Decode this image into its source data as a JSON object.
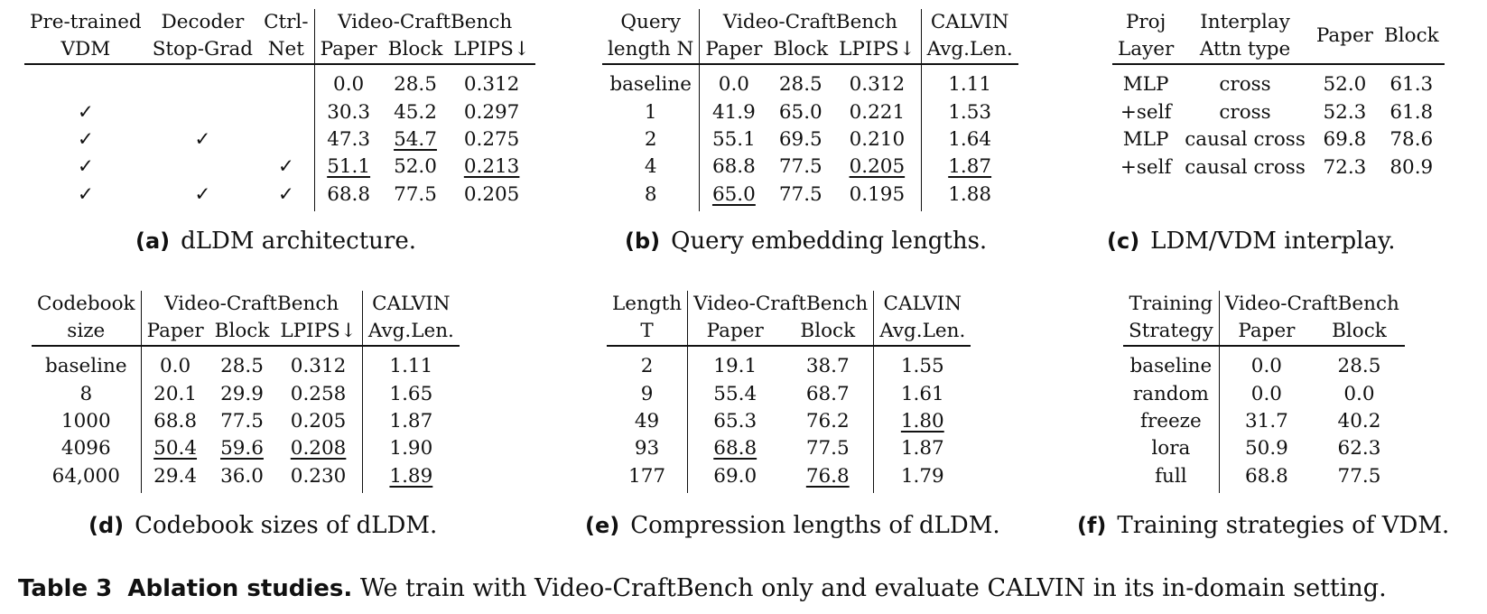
{
  "tables": [
    {
      "id": "a",
      "label": "(a)",
      "caption": "dLDM architecture.",
      "headers": {
        "top": [
          "Pre-trained",
          "Decoder",
          "Ctrl-",
          "Video-CraftBench"
        ],
        "sub": [
          "VDM",
          "Stop-Grad",
          "Net",
          "Paper",
          "Block",
          "LPIPS↓"
        ]
      },
      "rows": [
        [
          "",
          "",
          "",
          "0.0",
          "28.5",
          "0.312"
        ],
        [
          "✓",
          "",
          "",
          "30.3",
          "45.2",
          "0.297"
        ],
        [
          "✓",
          "✓",
          "",
          "47.3",
          "54.7",
          "0.275"
        ],
        [
          "✓",
          "",
          "✓",
          "51.1",
          "52.0",
          "0.213"
        ],
        [
          "✓",
          "✓",
          "✓",
          "68.8",
          "77.5",
          "0.205"
        ]
      ]
    },
    {
      "id": "b",
      "label": "(b)",
      "caption": "Query embedding lengths.",
      "headers": {
        "top": [
          "Query",
          "Video-CraftBench",
          "CALVIN"
        ],
        "sub": [
          "length N",
          "Paper",
          "Block",
          "LPIPS↓",
          "Avg.Len."
        ]
      },
      "rows": [
        [
          "baseline",
          "0.0",
          "28.5",
          "0.312",
          "1.11"
        ],
        [
          "1",
          "41.9",
          "65.0",
          "0.221",
          "1.53"
        ],
        [
          "2",
          "55.1",
          "69.5",
          "0.210",
          "1.64"
        ],
        [
          "4",
          "68.8",
          "77.5",
          "0.205",
          "1.87"
        ],
        [
          "8",
          "65.0",
          "77.5",
          "0.195",
          "1.88"
        ]
      ]
    },
    {
      "id": "c",
      "label": "(c)",
      "caption": "LDM/VDM interplay.",
      "headers": {
        "top": [
          "Proj",
          "Interplay",
          "Paper",
          "Block"
        ],
        "sub": [
          "Layer",
          "Attn type"
        ]
      },
      "rows": [
        [
          "MLP",
          "cross",
          "52.0",
          "61.3"
        ],
        [
          "+self",
          "cross",
          "52.3",
          "61.8"
        ],
        [
          "MLP",
          "causal cross",
          "69.8",
          "78.6"
        ],
        [
          "+self",
          "causal cross",
          "72.3",
          "80.9"
        ]
      ]
    },
    {
      "id": "d",
      "label": "(d)",
      "caption": "Codebook sizes of dLDM.",
      "headers": {
        "top": [
          "Codebook",
          "Video-CraftBench",
          "CALVIN"
        ],
        "sub": [
          "size",
          "Paper",
          "Block",
          "LPIPS↓",
          "Avg.Len."
        ]
      },
      "rows": [
        [
          "baseline",
          "0.0",
          "28.5",
          "0.312",
          "1.11"
        ],
        [
          "8",
          "20.1",
          "29.9",
          "0.258",
          "1.65"
        ],
        [
          "1000",
          "68.8",
          "77.5",
          "0.205",
          "1.87"
        ],
        [
          "4096",
          "50.4",
          "59.6",
          "0.208",
          "1.90"
        ],
        [
          "64,000",
          "29.4",
          "36.0",
          "0.230",
          "1.89"
        ]
      ]
    },
    {
      "id": "e",
      "label": "(e)",
      "caption": "Compression lengths of dLDM.",
      "headers": {
        "top": [
          "Length",
          "Video-CraftBench",
          "CALVIN"
        ],
        "sub": [
          "T",
          "Paper",
          "Block",
          "Avg.Len."
        ]
      },
      "rows": [
        [
          "2",
          "19.1",
          "38.7",
          "1.55"
        ],
        [
          "9",
          "55.4",
          "68.7",
          "1.61"
        ],
        [
          "49",
          "65.3",
          "76.2",
          "1.80"
        ],
        [
          "93",
          "68.8",
          "77.5",
          "1.87"
        ],
        [
          "177",
          "69.0",
          "76.8",
          "1.79"
        ]
      ]
    },
    {
      "id": "f",
      "label": "(f)",
      "caption": "Training strategies of VDM.",
      "headers": {
        "top": [
          "Training",
          "Video-CraftBench"
        ],
        "sub": [
          "Strategy",
          "Paper",
          "Block"
        ]
      },
      "rows": [
        [
          "baseline",
          "0.0",
          "28.5"
        ],
        [
          "random",
          "0.0",
          "0.0"
        ],
        [
          "freeze",
          "31.7",
          "40.2"
        ],
        [
          "lora",
          "50.9",
          "62.3"
        ],
        [
          "full",
          "68.8",
          "77.5"
        ]
      ]
    }
  ],
  "main_caption": {
    "label": "Table 3",
    "title": "Ablation studies.",
    "text": "We train with Video-CraftBench only and evaluate CALVIN in its in-domain setting."
  }
}
